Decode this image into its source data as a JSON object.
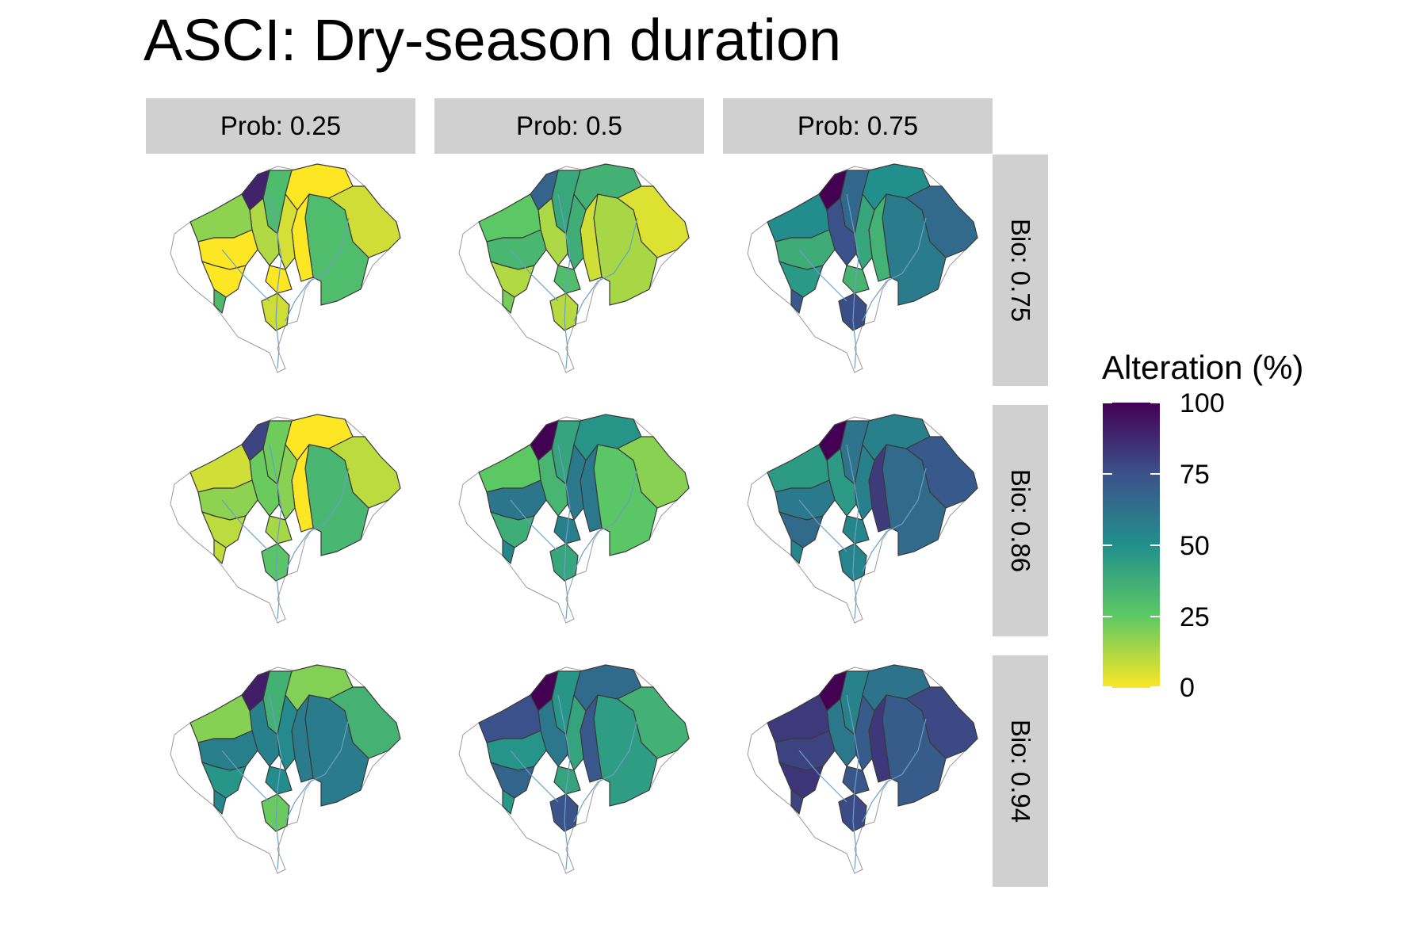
{
  "title": "ASCI: Dry-season duration",
  "columns": [
    "Prob: 0.25",
    "Prob: 0.5",
    "Prob: 0.75"
  ],
  "rows": [
    "Bio: 0.75",
    "Bio: 0.86",
    "Bio: 0.94"
  ],
  "legend": {
    "title": "Alteration (%)",
    "ticks": [
      "100",
      "75",
      "50",
      "25",
      "0"
    ],
    "scale": "viridis",
    "colors": [
      "#440154",
      "#3b528b",
      "#21908c",
      "#5dc963",
      "#fde725"
    ]
  },
  "panels": [
    {
      "row": 0,
      "col": 0,
      "level": 0.12
    },
    {
      "row": 0,
      "col": 1,
      "level": 0.25
    },
    {
      "row": 0,
      "col": 2,
      "level": 0.55
    },
    {
      "row": 1,
      "col": 0,
      "level": 0.15
    },
    {
      "row": 1,
      "col": 1,
      "level": 0.38
    },
    {
      "row": 1,
      "col": 2,
      "level": 0.62
    },
    {
      "row": 2,
      "col": 0,
      "level": 0.4
    },
    {
      "row": 2,
      "col": 1,
      "level": 0.56
    },
    {
      "row": 2,
      "col": 2,
      "level": 0.68
    }
  ]
}
